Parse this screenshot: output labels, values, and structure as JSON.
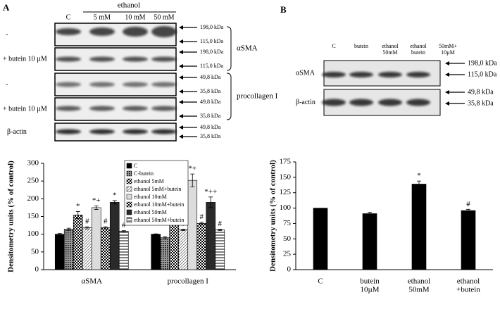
{
  "panels": {
    "a": "A",
    "b": "B"
  },
  "blot_a": {
    "header": "ethanol",
    "lanes": [
      "C",
      "5 mM",
      "10 mM",
      "50 mM"
    ],
    "rows": [
      "-",
      "+ butein 10 µM",
      "-",
      "+ butein 10 µM",
      "β-actin"
    ],
    "markers": [
      [
        "198,0 kDa",
        "115,0 kDa"
      ],
      [
        "198,0 kDa",
        "115,0 kDa"
      ],
      [
        "49,8 kDa",
        "35,8 kDa"
      ],
      [
        "49,8 kDa",
        "35,8 kDa"
      ],
      [
        "49,8 kDa",
        "35,8 kDa"
      ]
    ],
    "groups": [
      "αSMA",
      "procollagen I"
    ]
  },
  "blot_b": {
    "lanes": [
      [
        "C"
      ],
      [
        "butein"
      ],
      [
        "ethanol",
        "50mM"
      ],
      [
        "ethanol",
        "butein"
      ],
      [
        "50mM+",
        "10µM"
      ]
    ],
    "rows": [
      "αSMA",
      "β-actin"
    ],
    "markers": [
      [
        "198,0 kDa",
        "115,0 kDa"
      ],
      [
        "49,8 kDa",
        "35,8 kDa"
      ]
    ]
  },
  "chart_data": [
    {
      "type": "bar",
      "y_label": "Densitometry units (% of control)",
      "categories": [
        "αSMA",
        "procollagen I"
      ],
      "ylim": [
        0,
        300
      ],
      "yticks": [
        0,
        50,
        100,
        150,
        200,
        250,
        300
      ],
      "series": [
        {
          "name": "C",
          "color": "#000000",
          "pattern": "solid",
          "values": [
            100,
            100
          ],
          "errors": [
            2,
            1
          ],
          "annotations": [
            null,
            null
          ]
        },
        {
          "name": "C-butein",
          "color": "#9a9a9a",
          "pattern": "grid",
          "values": [
            114,
            90
          ],
          "errors": [
            3,
            3
          ],
          "annotations": [
            null,
            null
          ]
        },
        {
          "name": "ethanol 5mM",
          "color": "#ffffff",
          "pattern": "checker",
          "values": [
            154,
            135
          ],
          "errors": [
            10,
            8
          ],
          "annotations": [
            "*",
            "*"
          ]
        },
        {
          "name": "ethanol 5mM+butein",
          "color": "#ffffff",
          "pattern": "diagonal",
          "values": [
            118,
            112
          ],
          "errors": [
            3,
            2
          ],
          "annotations": [
            "#",
            "#"
          ]
        },
        {
          "name": "ethanol 10mM",
          "color": "#dcdcdc",
          "pattern": "solid",
          "values": [
            175,
            252
          ],
          "errors": [
            5,
            18
          ],
          "annotations": [
            "*+",
            "*+"
          ]
        },
        {
          "name": "ethanol 10mM+butein",
          "color": "#ffffff",
          "pattern": "checker",
          "values": [
            118,
            130
          ],
          "errors": [
            3,
            4
          ],
          "annotations": [
            "#",
            "#"
          ]
        },
        {
          "name": "ethanol 50mM",
          "color": "#2a2a2a",
          "pattern": "solid",
          "values": [
            190,
            190
          ],
          "errors": [
            5,
            15
          ],
          "annotations": [
            "*",
            "*++"
          ]
        },
        {
          "name": "ethanol 50mM+butein",
          "color": "#ffffff",
          "pattern": "hlines",
          "values": [
            108,
            112
          ],
          "errors": [
            2,
            2
          ],
          "annotations": [
            "#",
            "#"
          ]
        }
      ]
    },
    {
      "type": "bar",
      "y_label": "Densitometry units (% of control)",
      "categories": [
        [
          "C"
        ],
        [
          "butein",
          "10µM"
        ],
        [
          "ethanol",
          "50mM"
        ],
        [
          "ethanol",
          "+butein"
        ]
      ],
      "ylim": [
        0,
        175
      ],
      "yticks": [
        0,
        25,
        50,
        75,
        100,
        125,
        150,
        175
      ],
      "color": "#000000",
      "values": [
        100,
        91,
        139,
        96
      ],
      "errors": [
        0,
        2,
        5,
        2
      ],
      "annotations": [
        null,
        null,
        "*",
        "#"
      ]
    }
  ]
}
